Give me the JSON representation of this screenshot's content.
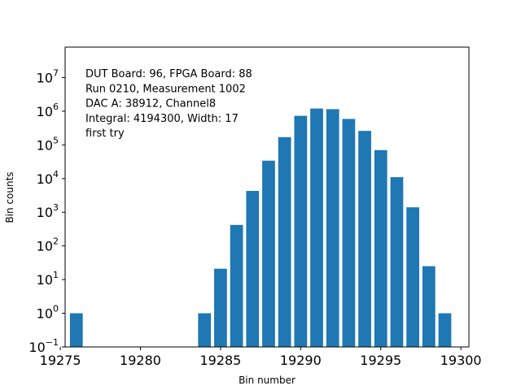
{
  "chart_data": {
    "type": "bar",
    "title": "",
    "xlabel": "Bin number",
    "ylabel": "Bin counts",
    "yscale": "log",
    "xlim": [
      19275.3,
      19300.5
    ],
    "ylim": [
      0.1,
      80000000
    ],
    "x_ticks": [
      19275,
      19280,
      19285,
      19290,
      19295,
      19300
    ],
    "y_ticks": [
      {
        "value": 0.1,
        "base": "10",
        "exp": "−1"
      },
      {
        "value": 1,
        "base": "10",
        "exp": "0"
      },
      {
        "value": 10,
        "base": "10",
        "exp": "1"
      },
      {
        "value": 100,
        "base": "10",
        "exp": "2"
      },
      {
        "value": 1000,
        "base": "10",
        "exp": "3"
      },
      {
        "value": 10000,
        "base": "10",
        "exp": "4"
      },
      {
        "value": 100000,
        "base": "10",
        "exp": "5"
      },
      {
        "value": 1000000,
        "base": "10",
        "exp": "6"
      },
      {
        "value": 10000000,
        "base": "10",
        "exp": "7"
      }
    ],
    "bar_color": "#1f77b4",
    "bars": [
      {
        "x": 19276,
        "value": 1
      },
      {
        "x": 19284,
        "value": 1
      },
      {
        "x": 19285,
        "value": 21
      },
      {
        "x": 19286,
        "value": 420
      },
      {
        "x": 19287,
        "value": 4300
      },
      {
        "x": 19288,
        "value": 34000
      },
      {
        "x": 19289,
        "value": 170000
      },
      {
        "x": 19290,
        "value": 730000
      },
      {
        "x": 19291,
        "value": 1200000
      },
      {
        "x": 19292,
        "value": 1150000
      },
      {
        "x": 19293,
        "value": 590000
      },
      {
        "x": 19294,
        "value": 260000
      },
      {
        "x": 19295,
        "value": 70000
      },
      {
        "x": 19296,
        "value": 11000
      },
      {
        "x": 19297,
        "value": 1400
      },
      {
        "x": 19298,
        "value": 25
      },
      {
        "x": 19299,
        "value": 1
      }
    ],
    "annotations": [
      "DUT Board: 96, FPGA Board: 88",
      "Run 0210, Measurement 1002",
      "DAC A: 38912, Channel8",
      "Integral: 4194300, Width: 17",
      "first try"
    ],
    "grid": false,
    "legend": "none"
  }
}
